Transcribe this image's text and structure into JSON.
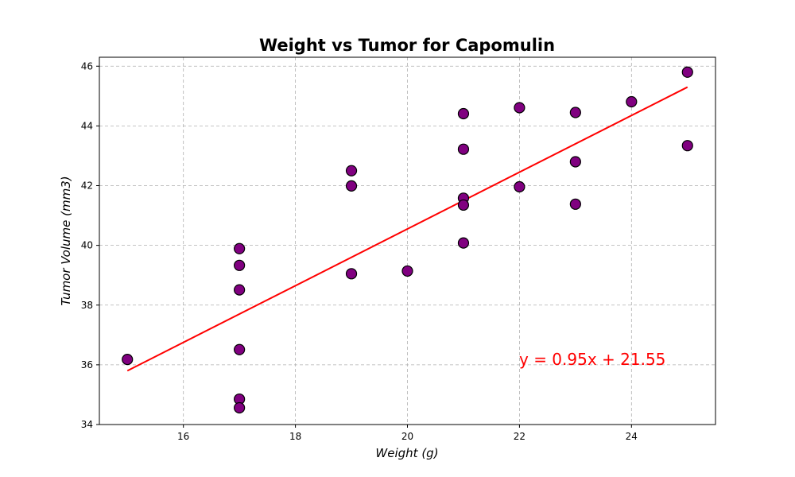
{
  "chart_data": {
    "type": "scatter",
    "title": "Weight vs Tumor for Capomulin",
    "xlabel": "Weight (g)",
    "ylabel": "Tumor Volume (mm3)",
    "xlim": [
      14.5,
      25.5
    ],
    "ylim": [
      34,
      46.3
    ],
    "xticks": [
      16,
      18,
      20,
      22,
      24
    ],
    "yticks": [
      34,
      36,
      38,
      40,
      42,
      44,
      46
    ],
    "grid": true,
    "grid_style": "dashed",
    "point_color": "#800080",
    "point_edge_color": "#000000",
    "regression_color": "#ff0000",
    "annotation": "y = 0.95x + 21.55",
    "annotation_color": "#ff0000",
    "regression": {
      "slope": 0.95,
      "intercept": 21.55,
      "x_range": [
        15,
        25
      ]
    },
    "points": [
      {
        "x": 15,
        "y": 36.18
      },
      {
        "x": 17,
        "y": 39.89
      },
      {
        "x": 17,
        "y": 39.33
      },
      {
        "x": 17,
        "y": 38.51
      },
      {
        "x": 17,
        "y": 36.51
      },
      {
        "x": 17,
        "y": 34.85
      },
      {
        "x": 17,
        "y": 34.56
      },
      {
        "x": 19,
        "y": 42.5
      },
      {
        "x": 19,
        "y": 41.99
      },
      {
        "x": 19,
        "y": 39.05
      },
      {
        "x": 20,
        "y": 39.14
      },
      {
        "x": 21,
        "y": 44.41
      },
      {
        "x": 21,
        "y": 43.22
      },
      {
        "x": 21,
        "y": 41.58
      },
      {
        "x": 21,
        "y": 41.35
      },
      {
        "x": 21,
        "y": 40.08
      },
      {
        "x": 22,
        "y": 44.61
      },
      {
        "x": 22,
        "y": 41.96
      },
      {
        "x": 23,
        "y": 44.45
      },
      {
        "x": 23,
        "y": 42.8
      },
      {
        "x": 23,
        "y": 41.38
      },
      {
        "x": 24,
        "y": 44.81
      },
      {
        "x": 25,
        "y": 45.8
      },
      {
        "x": 25,
        "y": 43.34
      }
    ]
  }
}
